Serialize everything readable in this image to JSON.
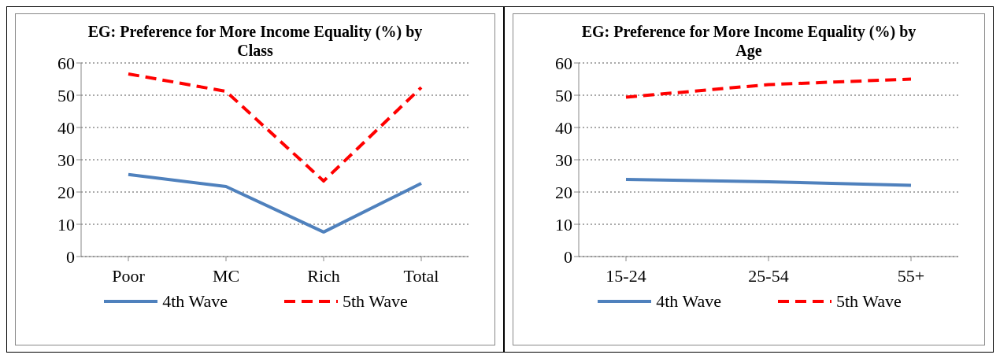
{
  "chart_data": [
    {
      "type": "line",
      "title": "EG: Preference for More Income Equality (%) by Class",
      "categories": [
        "Poor",
        "MC",
        "Rich",
        "Total"
      ],
      "ylim": [
        0,
        60
      ],
      "yticks": [
        0,
        10,
        20,
        30,
        40,
        50,
        60
      ],
      "grid": "y",
      "legend": "bottom",
      "marker": "none",
      "series": [
        {
          "name": "4th Wave",
          "color": "#4f81bd",
          "line_style": "solid",
          "values": [
            25.4,
            21.7,
            7.6,
            22.7
          ]
        },
        {
          "name": "5th Wave",
          "color": "#ff0000",
          "line_style": "dashed",
          "values": [
            56.6,
            51.2,
            23.4,
            52.4
          ]
        }
      ]
    },
    {
      "type": "line",
      "title": "EG: Preference for More Income Equality (%) by Age",
      "categories": [
        "15-24",
        "25-54",
        "55+"
      ],
      "ylim": [
        0,
        60
      ],
      "yticks": [
        0,
        10,
        20,
        30,
        40,
        50,
        60
      ],
      "grid": "y",
      "legend": "bottom",
      "marker": "none",
      "series": [
        {
          "name": "4th Wave",
          "color": "#4f81bd",
          "line_style": "solid",
          "values": [
            23.9,
            23.2,
            22.1
          ]
        },
        {
          "name": "5th Wave",
          "color": "#ff0000",
          "line_style": "dashed",
          "values": [
            49.4,
            53.3,
            55.0
          ]
        }
      ]
    }
  ]
}
